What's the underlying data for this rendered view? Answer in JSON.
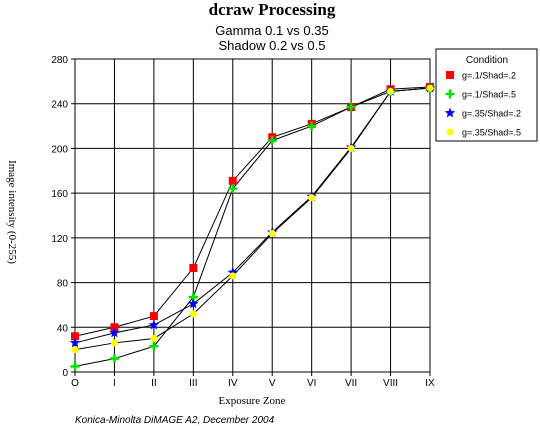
{
  "chart_data": {
    "type": "line",
    "title": "dcraw Processing",
    "subtitle_lines": [
      "Gamma 0.1 vs 0.35",
      "Shadow 0.2 vs 0.5"
    ],
    "xlabel": "Exposure Zone",
    "ylabel": "Image intensity (0-255)",
    "categories": [
      "O",
      "I",
      "II",
      "III",
      "IV",
      "V",
      "VI",
      "VII",
      "VIII",
      "IX"
    ],
    "ylim": [
      0,
      280
    ],
    "yticks": [
      0,
      40,
      80,
      120,
      160,
      200,
      240,
      280
    ],
    "grid": true,
    "legend_title": "Condition",
    "legend_position": "top-right",
    "series": [
      {
        "name": "g=.1/Shad=.2",
        "color": "#ff0000",
        "marker": "square",
        "values": [
          32,
          40,
          50,
          93,
          171,
          210,
          222,
          237,
          253,
          255
        ]
      },
      {
        "name": "g=.1/Shad=.5",
        "color": "#00e000",
        "marker": "plus",
        "values": [
          5,
          12,
          23,
          67,
          164,
          207,
          220,
          237,
          251,
          254
        ]
      },
      {
        "name": "g=.35/Shad=.2",
        "color": "#0000ff",
        "marker": "star",
        "values": [
          26,
          35,
          42,
          61,
          89,
          125,
          157,
          201,
          251,
          254
        ]
      },
      {
        "name": "g=.35/Shad=.5",
        "color": "#ffff00",
        "marker": "dot",
        "values": [
          20,
          26,
          30,
          52,
          86,
          124,
          156,
          200,
          251,
          254
        ]
      }
    ],
    "footnote": "Konica-Minolta DiMAGE A2, December 2004"
  }
}
